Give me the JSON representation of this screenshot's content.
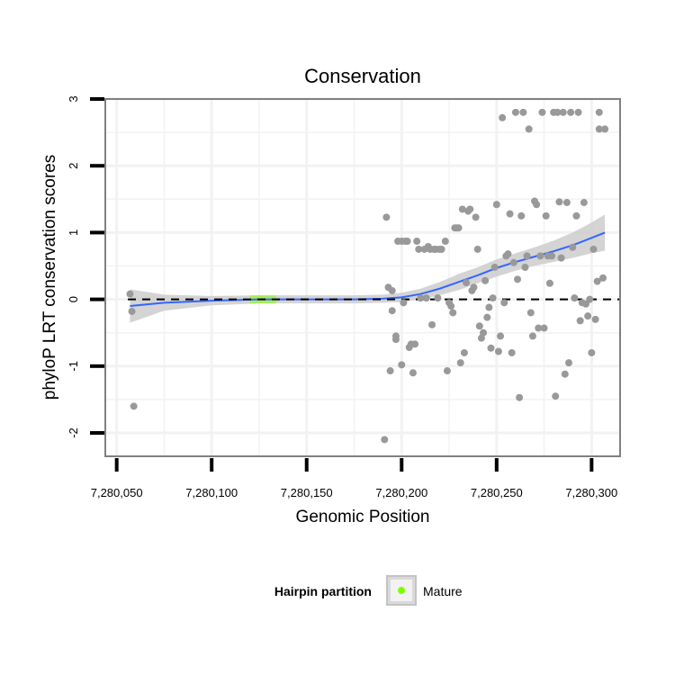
{
  "chart_data": {
    "type": "scatter",
    "title": "Conservation",
    "xlabel": "Genomic Position",
    "ylabel": "phyloP LRT conservation scores",
    "xlim": [
      7280044,
      7280315
    ],
    "ylim": [
      -2.35,
      3.0
    ],
    "x_ticks": [
      7280050,
      7280100,
      7280150,
      7280200,
      7280250,
      7280300
    ],
    "x_tick_labels": [
      "7,280,050",
      "7,280,100",
      "7,280,150",
      "7,280,200",
      "7,280,250",
      "7,280,300"
    ],
    "y_ticks": [
      -2,
      -1,
      0,
      1,
      2,
      3
    ],
    "y_tick_labels": [
      "-2",
      "-1",
      "0",
      "1",
      "2",
      "3"
    ],
    "reference_line_y": 0,
    "points": [
      [
        7280057,
        0.08
      ],
      [
        7280058,
        -0.18
      ],
      [
        7280059,
        -1.6
      ],
      [
        7280121,
        0.01
      ],
      [
        7280122,
        0.01
      ],
      [
        7280123,
        0.01
      ],
      [
        7280124,
        0.01
      ],
      [
        7280125,
        0.01
      ],
      [
        7280126,
        0.01
      ],
      [
        7280127,
        0.01
      ],
      [
        7280128,
        0.01
      ],
      [
        7280129,
        0.01
      ],
      [
        7280130,
        0.01
      ],
      [
        7280131,
        0.01
      ],
      [
        7280132,
        0.01
      ],
      [
        7280133,
        0.01
      ],
      [
        7280191,
        -2.1
      ],
      [
        7280192,
        1.23
      ],
      [
        7280193,
        0.18
      ],
      [
        7280194,
        -1.07
      ],
      [
        7280195,
        0.13
      ],
      [
        7280195,
        -0.17
      ],
      [
        7280197,
        -0.55
      ],
      [
        7280197,
        -0.6
      ],
      [
        7280198,
        0.87
      ],
      [
        7280200,
        -0.98
      ],
      [
        7280200,
        0.87
      ],
      [
        7280201,
        -0.05
      ],
      [
        7280202,
        0.87
      ],
      [
        7280203,
        0.87
      ],
      [
        7280204,
        -0.72
      ],
      [
        7280205,
        -0.67
      ],
      [
        7280206,
        -1.1
      ],
      [
        7280207,
        -0.67
      ],
      [
        7280208,
        0.87
      ],
      [
        7280209,
        0.75
      ],
      [
        7280210,
        0.02
      ],
      [
        7280212,
        0.75
      ],
      [
        7280213,
        0.02
      ],
      [
        7280214,
        0.79
      ],
      [
        7280215,
        0.75
      ],
      [
        7280216,
        -0.38
      ],
      [
        7280217,
        0.75
      ],
      [
        7280218,
        0.75
      ],
      [
        7280219,
        0.02
      ],
      [
        7280220,
        0.75
      ],
      [
        7280221,
        0.75
      ],
      [
        7280223,
        0.87
      ],
      [
        7280224,
        -1.07
      ],
      [
        7280225,
        -0.05
      ],
      [
        7280226,
        -0.1
      ],
      [
        7280227,
        -0.2
      ],
      [
        7280228,
        1.07
      ],
      [
        7280229,
        1.07
      ],
      [
        7280230,
        1.07
      ],
      [
        7280231,
        -0.95
      ],
      [
        7280232,
        1.35
      ],
      [
        7280233,
        -0.8
      ],
      [
        7280234,
        0.25
      ],
      [
        7280235,
        1.32
      ],
      [
        7280236,
        1.35
      ],
      [
        7280237,
        0.13
      ],
      [
        7280238,
        0.18
      ],
      [
        7280239,
        1.23
      ],
      [
        7280240,
        0.75
      ],
      [
        7280241,
        -0.4
      ],
      [
        7280242,
        -0.58
      ],
      [
        7280243,
        -0.5
      ],
      [
        7280244,
        0.28
      ],
      [
        7280245,
        -0.27
      ],
      [
        7280246,
        -0.12
      ],
      [
        7280247,
        -0.73
      ],
      [
        7280248,
        0.02
      ],
      [
        7280249,
        0.48
      ],
      [
        7280250,
        1.42
      ],
      [
        7280251,
        -0.78
      ],
      [
        7280252,
        -0.55
      ],
      [
        7280253,
        2.72
      ],
      [
        7280254,
        -0.05
      ],
      [
        7280255,
        0.65
      ],
      [
        7280256,
        0.68
      ],
      [
        7280257,
        1.28
      ],
      [
        7280258,
        -0.8
      ],
      [
        7280259,
        0.55
      ],
      [
        7280260,
        2.8
      ],
      [
        7280261,
        0.3
      ],
      [
        7280262,
        -1.47
      ],
      [
        7280263,
        1.25
      ],
      [
        7280264,
        2.8
      ],
      [
        7280265,
        0.48
      ],
      [
        7280266,
        0.65
      ],
      [
        7280267,
        2.55
      ],
      [
        7280268,
        -0.2
      ],
      [
        7280269,
        -0.55
      ],
      [
        7280270,
        1.47
      ],
      [
        7280271,
        1.42
      ],
      [
        7280272,
        -0.43
      ],
      [
        7280273,
        0.65
      ],
      [
        7280274,
        2.8
      ],
      [
        7280275,
        -0.43
      ],
      [
        7280276,
        1.25
      ],
      [
        7280277,
        0.65
      ],
      [
        7280278,
        0.24
      ],
      [
        7280279,
        0.65
      ],
      [
        7280280,
        2.8
      ],
      [
        7280281,
        -1.45
      ],
      [
        7280282,
        2.8
      ],
      [
        7280283,
        1.46
      ],
      [
        7280284,
        0.62
      ],
      [
        7280285,
        2.8
      ],
      [
        7280286,
        -1.12
      ],
      [
        7280287,
        1.45
      ],
      [
        7280288,
        -0.95
      ],
      [
        7280289,
        2.8
      ],
      [
        7280290,
        0.78
      ],
      [
        7280291,
        0.02
      ],
      [
        7280292,
        1.25
      ],
      [
        7280293,
        2.8
      ],
      [
        7280294,
        -0.32
      ],
      [
        7280295,
        -0.05
      ],
      [
        7280296,
        1.45
      ],
      [
        7280297,
        -0.07
      ],
      [
        7280298,
        -0.25
      ],
      [
        7280299,
        0.0
      ],
      [
        7280300,
        -0.8
      ],
      [
        7280301,
        0.75
      ],
      [
        7280302,
        -0.3
      ],
      [
        7280303,
        0.27
      ],
      [
        7280304,
        2.8
      ],
      [
        7280304,
        2.55
      ],
      [
        7280306,
        0.32
      ],
      [
        7280307,
        2.55
      ]
    ],
    "smooth_x": [
      7280057,
      7280075,
      7280100,
      7280125,
      7280150,
      7280175,
      7280190,
      7280200,
      7280210,
      7280220,
      7280230,
      7280240,
      7280250,
      7280260,
      7280270,
      7280280,
      7280290,
      7280300,
      7280307
    ],
    "smooth_y": [
      -0.1,
      -0.05,
      -0.02,
      0.0,
      0.0,
      0.0,
      0.01,
      0.03,
      0.08,
      0.16,
      0.26,
      0.36,
      0.47,
      0.56,
      0.64,
      0.72,
      0.81,
      0.92,
      1.0
    ],
    "smooth_se": [
      0.25,
      0.12,
      0.07,
      0.06,
      0.06,
      0.06,
      0.06,
      0.07,
      0.08,
      0.1,
      0.12,
      0.12,
      0.13,
      0.13,
      0.14,
      0.16,
      0.19,
      0.23,
      0.27
    ],
    "highlight_x_range": [
      7280120,
      7280134
    ],
    "colors": {
      "points": "#999999",
      "smooth_line": "#3366ff",
      "confidence_band": "#cccccc",
      "mature": "#7fff00",
      "reference_line": "#000000",
      "grid": "#f2f2f2",
      "panel_border": "#808080"
    },
    "legend": {
      "title": "Hairpin partition",
      "entries": [
        {
          "label": "Mature",
          "color": "#7fff00"
        }
      ],
      "position": "bottom"
    }
  }
}
